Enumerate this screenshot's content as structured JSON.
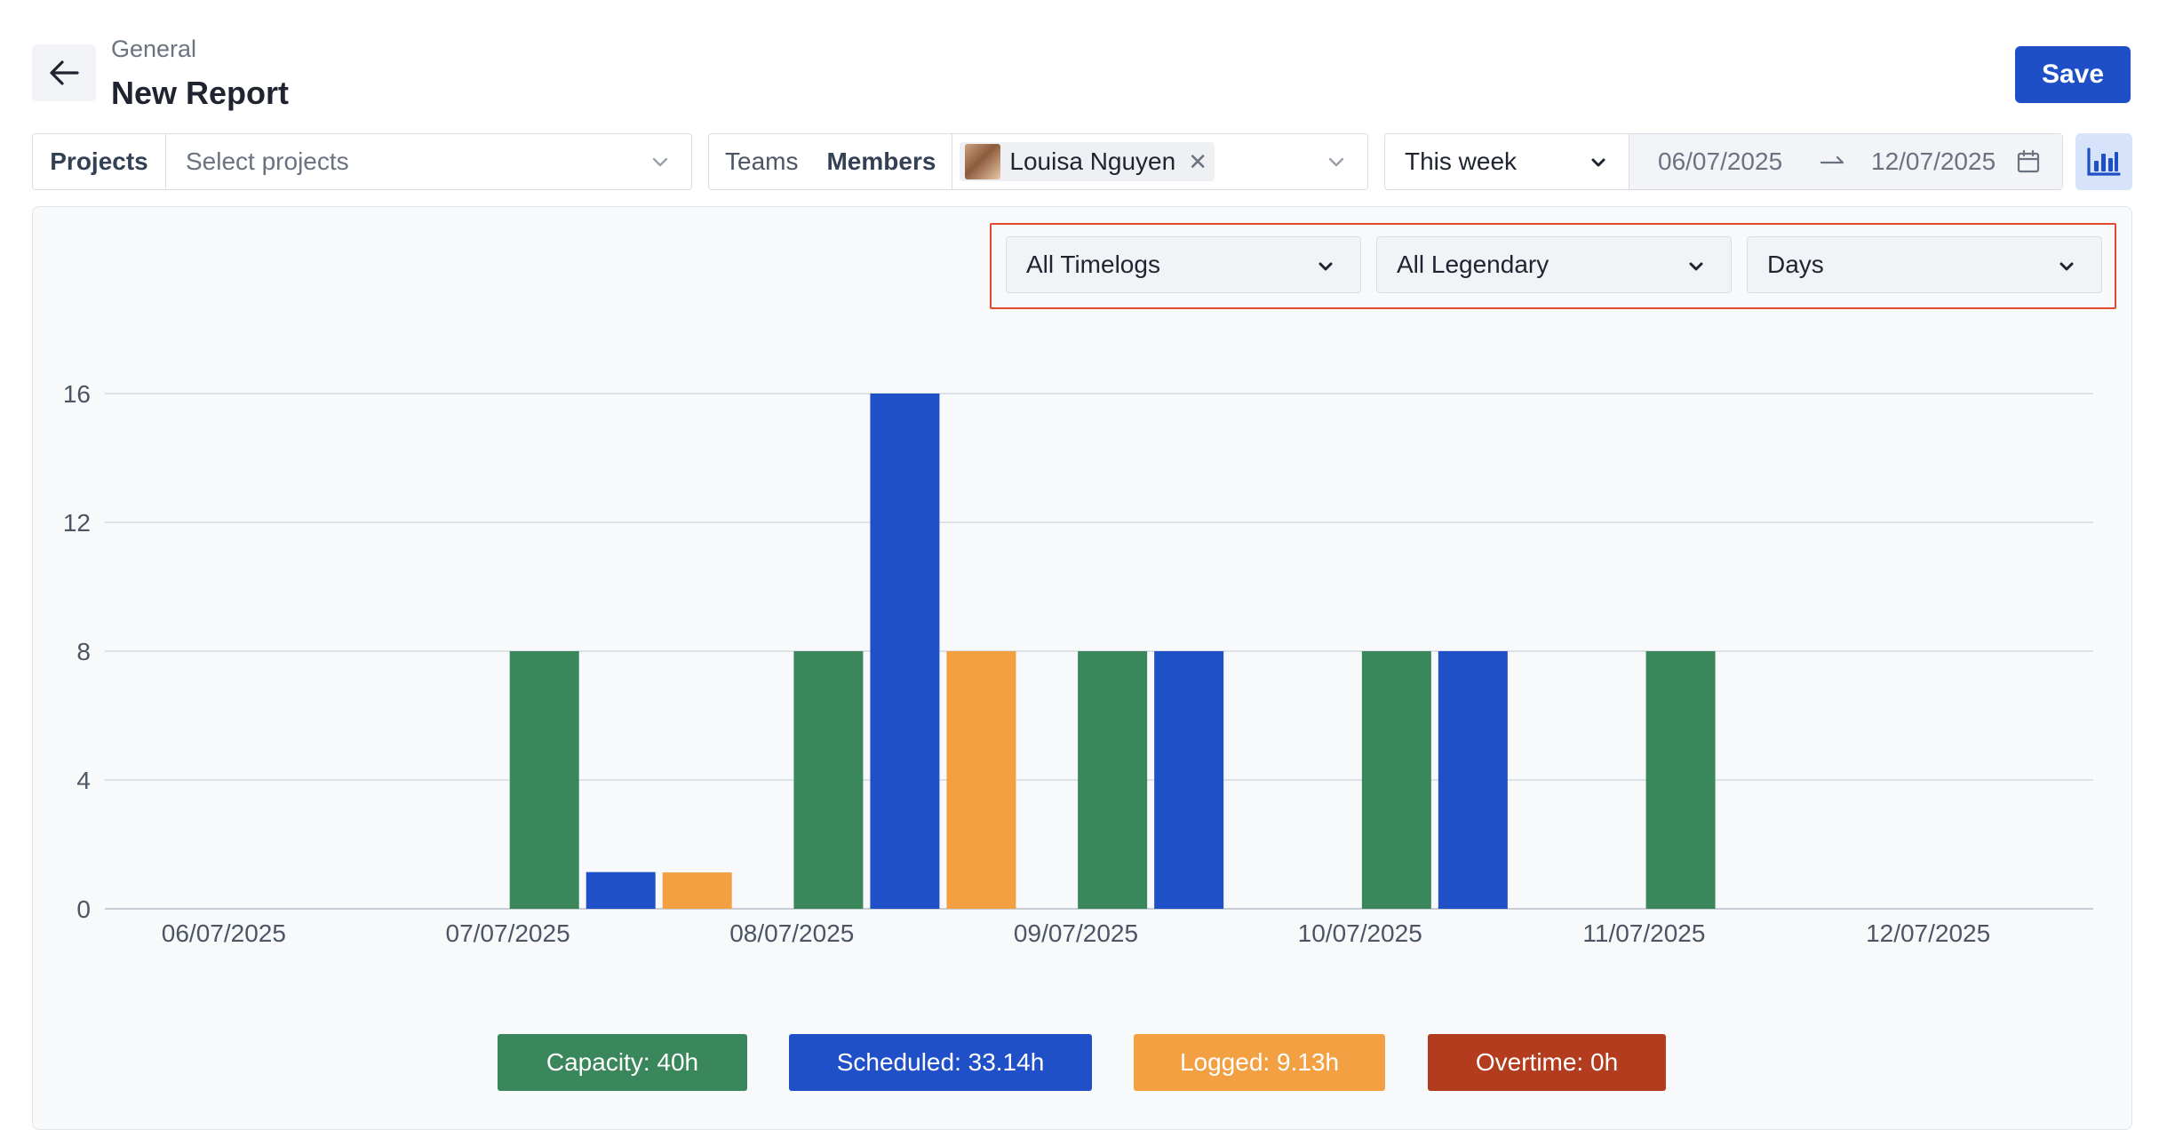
{
  "header": {
    "breadcrumb": "General",
    "title": "New Report",
    "save_label": "Save"
  },
  "filters": {
    "projects_label": "Projects",
    "projects_placeholder": "Select projects",
    "teams_label": "Teams",
    "members_label": "Members",
    "member_chip": "Louisa Nguyen",
    "period": "This week",
    "date_from": "06/07/2025",
    "date_to": "12/07/2025"
  },
  "chart_controls": {
    "timelogs": "All Timelogs",
    "legendary": "All Legendary",
    "grouping": "Days"
  },
  "legend": {
    "capacity": "Capacity:  40h",
    "scheduled": "Scheduled:  33.14h",
    "logged": "Logged:  9.13h",
    "overtime": "Overtime:  0h"
  },
  "colors": {
    "capacity": "#3b875c",
    "scheduled": "#2050c8",
    "logged": "#f2a042",
    "overtime": "#b33c1f",
    "accent": "#1f4fc7"
  },
  "chart_data": {
    "type": "bar",
    "categories": [
      "06/07/2025",
      "07/07/2025",
      "08/07/2025",
      "09/07/2025",
      "10/07/2025",
      "11/07/2025",
      "12/07/2025"
    ],
    "series": [
      {
        "key": "capacity",
        "values": [
          0,
          8,
          8,
          8,
          8,
          8,
          0
        ]
      },
      {
        "key": "scheduled",
        "values": [
          0,
          1.14,
          16,
          8,
          8,
          0,
          0
        ]
      },
      {
        "key": "logged",
        "values": [
          0,
          1.13,
          8,
          0,
          0,
          0,
          0
        ]
      }
    ],
    "yticks": [
      0,
      4,
      8,
      12,
      16
    ],
    "ylim": [
      0,
      16
    ],
    "grid": true
  }
}
